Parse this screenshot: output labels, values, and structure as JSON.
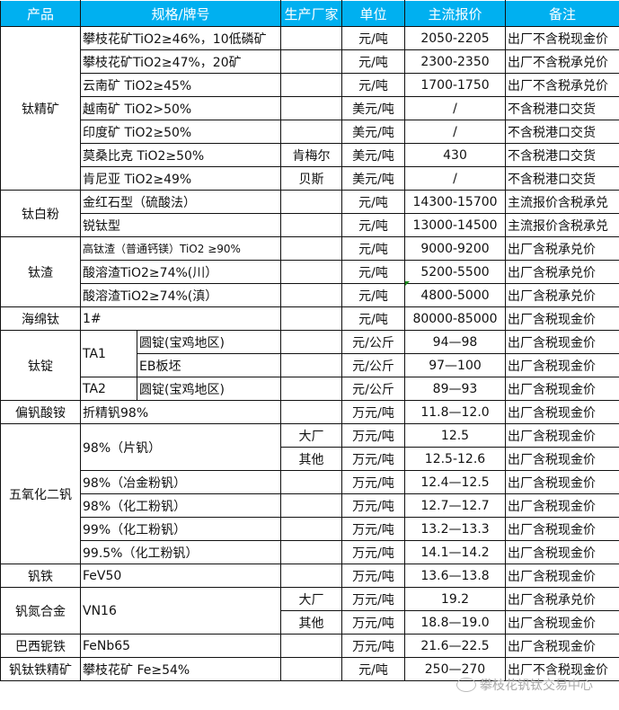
{
  "headers": [
    "产品",
    "规格/牌号",
    "生产厂家",
    "单位",
    "主流报价",
    "备注"
  ],
  "groups": [
    {
      "product": "钛精矿",
      "rows": [
        {
          "spec": "攀枝花矿TiO2≥46%，10低磷矿",
          "maker": "",
          "unit": "元/吨",
          "price": "2050-2205",
          "note": "出厂不含税现金价"
        },
        {
          "spec": "攀枝花矿TiO2≥47%，20矿",
          "maker": "",
          "unit": "元/吨",
          "price": "2300-2350",
          "note": "出厂不含税承兑价"
        },
        {
          "spec": "云南矿 TiO2≥45%",
          "maker": "",
          "unit": "元/吨",
          "price": "1700-1750",
          "note": "出厂不含税承兑价"
        },
        {
          "spec": "越南矿 TiO2>50%",
          "maker": "",
          "unit": "美元/吨",
          "price": "/",
          "note": "不含税港口交货"
        },
        {
          "spec": "印度矿 TiO2≥50%",
          "maker": "",
          "unit": "美元/吨",
          "price": "/",
          "note": "不含税港口交货"
        },
        {
          "spec": "莫桑比克 TiO2≥50%",
          "maker": "肯梅尔",
          "unit": "美元/吨",
          "price": "430",
          "note": "不含税港口交货"
        },
        {
          "spec": "肯尼亚 TiO2≥49%",
          "maker": "贝斯",
          "unit": "美元/吨",
          "price": "/",
          "note": "不含税港口交货"
        }
      ]
    },
    {
      "product": "钛白粉",
      "rows": [
        {
          "spec": "金红石型（硫酸法）",
          "maker": "",
          "unit": "元/吨",
          "price": "14300-15700",
          "note": "主流报价含税承兑"
        },
        {
          "spec": "锐钛型",
          "maker": "",
          "unit": "元/吨",
          "price": "13000-14500",
          "note": "主流报价含税承兑"
        }
      ]
    },
    {
      "product": "钛渣",
      "rows": [
        {
          "spec": "高钛渣（普通钙镁）TiO2 ≥90%",
          "maker": "",
          "unit": "元/吨",
          "price": "9000-9200",
          "note": "出厂含税承兑价"
        },
        {
          "spec": "酸溶渣TiO2≥74%(川）",
          "maker": "",
          "unit": "元/吨",
          "price": "5200-5500",
          "note": "出厂含税承兑价"
        },
        {
          "spec": "酸溶渣TiO2≥74%(滇）",
          "maker": "",
          "unit": "元/吨",
          "price": "4800-5000",
          "note": "出厂含税承兑价"
        }
      ]
    },
    {
      "product": "海绵钛",
      "rows": [
        {
          "spec": "1#",
          "maker": "",
          "unit": "元/吨",
          "price": "80000-85000",
          "note": "出厂含税现金价"
        }
      ]
    },
    {
      "product": "钛锭",
      "rows": [
        {
          "spec": "TA1",
          "sub": "圆锭(宝鸡地区)",
          "maker": "",
          "unit": "元/公斤",
          "price": "94—98",
          "note": "出厂含税现金价"
        },
        {
          "spec": null,
          "sub": "EB板坯",
          "maker": "",
          "unit": "元/公斤",
          "price": "97—100",
          "note": "出厂含税现金价"
        },
        {
          "spec": "TA2",
          "sub": "圆锭(宝鸡地区)",
          "maker": "",
          "unit": "元/公斤",
          "price": "89—93",
          "note": "出厂含税现金价"
        }
      ]
    },
    {
      "product": "偏钒酸铵",
      "rows": [
        {
          "spec": "折精钒98%",
          "maker": "",
          "unit": "万元/吨",
          "price": "11.8—12.0",
          "note": "出厂含税现金价"
        }
      ]
    },
    {
      "product": "五氧化二钒",
      "rows": [
        {
          "spec": "98%（片钒）",
          "maker": "大厂",
          "unit": "万元/吨",
          "price": "12.5",
          "note": "出厂含税现金价"
        },
        {
          "spec": null,
          "maker": "其他",
          "unit": "万元/吨",
          "price": "12.5-12.6",
          "note": "出厂含税现金价"
        },
        {
          "spec": "98%（冶金粉钒）",
          "maker": "",
          "unit": "万元/吨",
          "price": "12.4—12.5",
          "note": "出厂含税现金价"
        },
        {
          "spec": "98%（化工粉钒）",
          "maker": "",
          "unit": "万元/吨",
          "price": "12.7—12.7",
          "note": "出厂含税现金价"
        },
        {
          "spec": "99%（化工粉钒）",
          "maker": "",
          "unit": "万元/吨",
          "price": "13.2—13.3",
          "note": "出厂含税现金价"
        },
        {
          "spec": "99.5%（化工粉钒）",
          "maker": "",
          "unit": "万元/吨",
          "price": "14.1—14.2",
          "note": "出厂含税现金价"
        }
      ]
    },
    {
      "product": "钒铁",
      "rows": [
        {
          "spec": "FeV50",
          "maker": "",
          "unit": "万元/吨",
          "price": "13.6—13.8",
          "note": "出厂含税现金价"
        }
      ]
    },
    {
      "product": "钒氮合金",
      "rows": [
        {
          "spec": "VN16",
          "maker": "大厂",
          "unit": "万元/吨",
          "price": "19.2",
          "note": "出厂含税承兑价"
        },
        {
          "spec": null,
          "maker": "其他",
          "unit": "万元/吨",
          "price": "18.8—19.0",
          "note": "出厂含税现金价"
        }
      ]
    },
    {
      "product": "巴西铌铁",
      "rows": [
        {
          "spec": "FeNb65",
          "maker": "",
          "unit": "万元/吨",
          "price": "21.6—22.5",
          "note": "出厂含税现金价"
        }
      ]
    },
    {
      "product": "钒钛铁精矿",
      "rows": [
        {
          "spec": "攀枝花矿 Fe≥54%",
          "maker": "",
          "unit": "元/吨",
          "price": "250—270",
          "note": "出厂不含税现金价"
        }
      ]
    }
  ],
  "watermark": "攀枝花钒钛交易中心",
  "colors": {
    "header_bg": "#00b0f0",
    "header_text": "#ffffff",
    "border": "#111111"
  }
}
